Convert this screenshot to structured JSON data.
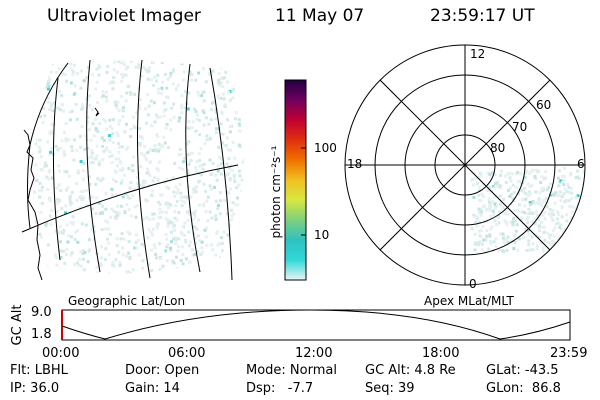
{
  "header": {
    "instrument": "Ultraviolet Imager",
    "date": "11 May 07",
    "time": "23:59:17 UT"
  },
  "geo_panel": {
    "label": "Geographic Lat/Lon"
  },
  "colorbar": {
    "unit_label": "photon cm⁻²s⁻¹",
    "ticks": [
      "100",
      "10"
    ],
    "scale": "log",
    "colors": [
      "#e8f4f4",
      "#30d8d8",
      "#30c0c0",
      "#7ed07e",
      "#d8e840",
      "#f0c020",
      "#f07000",
      "#e03010",
      "#c00030",
      "#700060",
      "#200040"
    ]
  },
  "polar_panel": {
    "label": "Apex MLat/MLT",
    "mlt_labels": {
      "top": "12",
      "left": "18",
      "right": "6",
      "bottom": "0"
    },
    "lat_labels": [
      "60",
      "70",
      "80"
    ]
  },
  "altitude_plot": {
    "ylabel": "GC Alt",
    "yticks": [
      "9.0",
      "1.8"
    ],
    "xticks": [
      "00:00",
      "06:00",
      "12:00",
      "18:00",
      "23:59"
    ]
  },
  "status": {
    "filter": "Flt: LBHL",
    "ip": "IP: 36.0",
    "door": "Door: Open",
    "gain": "Gain: 14",
    "mode": "Mode: Normal",
    "dsp": "Dsp:   -7.7",
    "gc_alt": "GC Alt: 4.8 Re",
    "seq": "Seq: 39",
    "glat": "GLat: -43.5",
    "glon": "GLon:  86.8"
  }
}
